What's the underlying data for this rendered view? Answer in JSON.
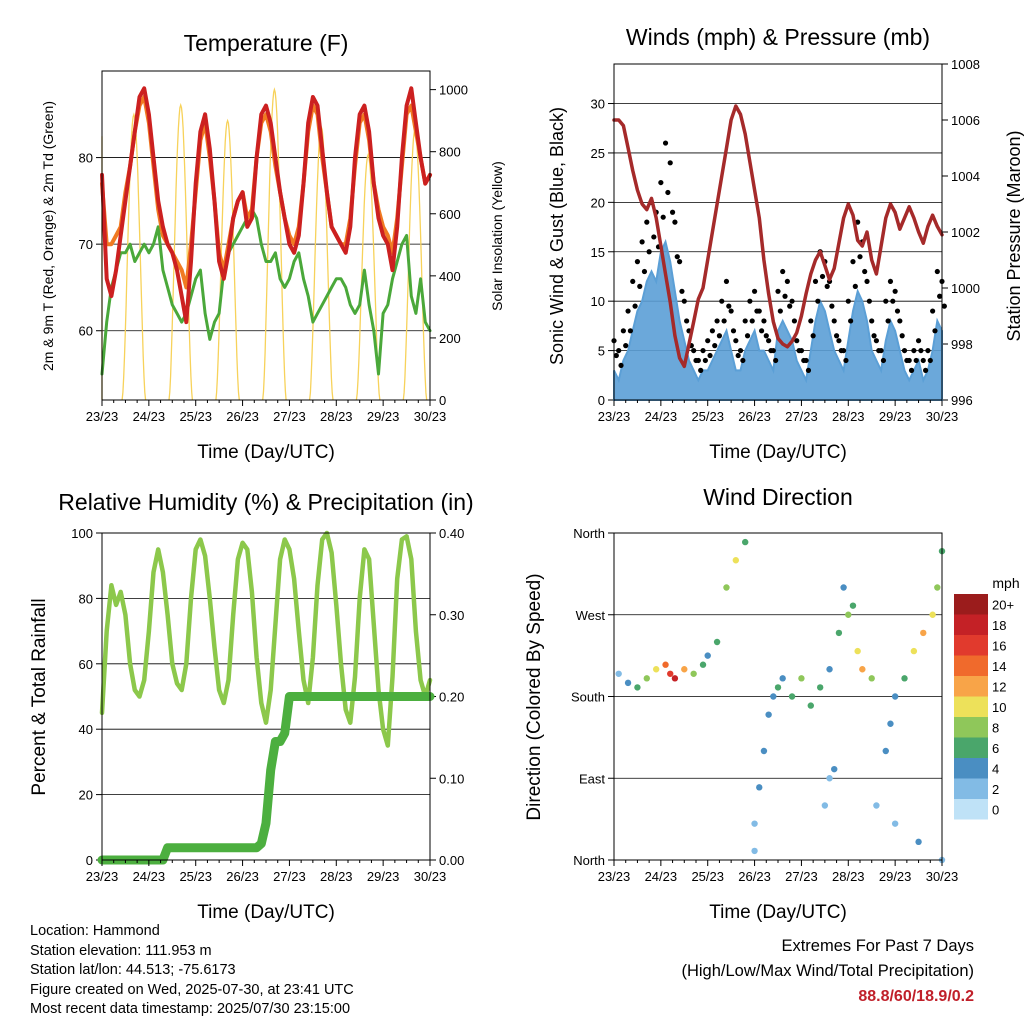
{
  "colors": {
    "temp2m": "#cc2020",
    "temp9m": "#f07a22",
    "dewpoint": "#4aa83a",
    "solar": "#f7d25a",
    "gust": "#000000",
    "wind": "#5b9fd6",
    "pressure": "#a52a2a",
    "rh": "#8cc84b",
    "rain": "#4caf3f",
    "highlight": "#c0202a"
  },
  "time_ticks": [
    "23/23",
    "24/23",
    "25/23",
    "26/23",
    "27/23",
    "28/23",
    "29/23",
    "30/23"
  ],
  "chart_data": [
    {
      "id": "temperature",
      "type": "line",
      "title": "Temperature (F)",
      "xlabel": "Time (Day/UTC)",
      "ylabel": "2m & 9m T (Red, Orange) & 2m Td (Green)",
      "y2label": "Solar Insolation (Yellow)",
      "ylim": [
        52,
        90
      ],
      "y2lim": [
        0,
        1060
      ],
      "yticks": [
        60,
        70,
        80
      ],
      "y2ticks": [
        0,
        200,
        400,
        600,
        800,
        1000
      ],
      "x": [
        0,
        0.1,
        0.2,
        0.3,
        0.4,
        0.5,
        0.6,
        0.7,
        0.8,
        0.9,
        1,
        1.1,
        1.2,
        1.3,
        1.4,
        1.5,
        1.6,
        1.7,
        1.8,
        1.9,
        2,
        2.1,
        2.2,
        2.3,
        2.4,
        2.5,
        2.6,
        2.7,
        2.8,
        2.9,
        3,
        3.1,
        3.2,
        3.3,
        3.4,
        3.5,
        3.6,
        3.7,
        3.8,
        3.9,
        4,
        4.1,
        4.2,
        4.3,
        4.4,
        4.5,
        4.6,
        4.7,
        4.8,
        4.9,
        5,
        5.1,
        5.2,
        5.3,
        5.4,
        5.5,
        5.6,
        5.7,
        5.8,
        5.9,
        6,
        6.1,
        6.2,
        6.3,
        6.4,
        6.5,
        6.6,
        6.7,
        6.8,
        6.9,
        7
      ],
      "series": [
        {
          "name": "2m T",
          "color": "temp2m",
          "values": [
            78,
            66,
            64,
            67,
            71,
            75,
            79,
            83,
            87,
            88,
            85,
            80,
            75,
            72,
            70,
            69,
            67,
            64,
            61,
            68,
            77,
            83,
            85,
            81,
            75,
            68,
            66,
            69,
            73,
            75,
            76,
            72,
            73,
            80,
            85,
            86,
            84,
            80,
            76,
            73,
            70,
            69,
            71,
            77,
            84,
            87,
            86,
            81,
            76,
            72,
            71,
            70,
            69,
            72,
            80,
            85,
            86,
            83,
            77,
            73,
            71,
            70,
            67,
            72,
            80,
            86,
            88,
            84,
            80,
            77,
            78
          ]
        },
        {
          "name": "9m T",
          "color": "temp9m",
          "values": [
            77,
            70,
            70,
            71,
            72,
            76,
            79,
            83,
            86,
            87,
            84,
            79,
            74,
            71,
            70,
            69,
            68,
            67,
            65,
            70,
            76,
            82,
            84,
            80,
            75,
            69,
            67,
            70,
            73,
            75,
            76,
            73,
            74,
            80,
            84,
            85,
            83,
            79,
            76,
            73,
            71,
            70,
            72,
            77,
            83,
            86,
            85,
            80,
            76,
            72,
            71,
            70,
            70,
            73,
            79,
            84,
            85,
            82,
            77,
            74,
            72,
            71,
            69,
            73,
            79,
            85,
            86,
            83,
            80,
            77,
            78
          ]
        },
        {
          "name": "2m Td",
          "color": "dewpoint",
          "values": [
            55,
            61,
            65,
            67,
            69,
            69,
            70,
            68,
            69,
            70,
            69,
            70,
            72,
            67,
            65,
            63,
            62,
            61,
            62,
            64,
            66,
            67,
            62,
            59,
            61,
            62,
            67,
            69,
            70,
            71,
            72,
            73,
            74,
            73,
            70,
            68,
            68,
            69,
            66,
            65,
            66,
            68,
            69,
            66,
            64,
            61,
            62,
            63,
            64,
            65,
            66,
            66,
            65,
            63,
            62,
            63,
            67,
            63,
            60,
            55,
            62,
            63,
            66,
            68,
            70,
            71,
            64,
            62,
            66,
            61,
            60
          ]
        },
        {
          "name": "Solar",
          "axis": "right",
          "color": "solar",
          "diurnal_peaks": [
            850,
            920,
            950,
            900,
            1000,
            880,
            790,
            870
          ]
        }
      ]
    },
    {
      "id": "winds",
      "type": "scatter",
      "title": "Winds (mph) & Pressure (mb)",
      "xlabel": "Time (Day/UTC)",
      "ylabel": "Sonic Wind & Gust (Blue, Black)",
      "y2label": "Station Pressure (Maroon)",
      "ylim": [
        0,
        34
      ],
      "y2lim": [
        996,
        1008
      ],
      "yticks": [
        0,
        5,
        10,
        15,
        20,
        25,
        30
      ],
      "y2ticks": [
        996,
        998,
        1000,
        1002,
        1004,
        1006,
        1008
      ],
      "x": [
        0,
        0.1,
        0.2,
        0.3,
        0.4,
        0.5,
        0.6,
        0.7,
        0.8,
        0.9,
        1,
        1.1,
        1.2,
        1.3,
        1.4,
        1.5,
        1.6,
        1.7,
        1.8,
        1.9,
        2,
        2.1,
        2.2,
        2.3,
        2.4,
        2.5,
        2.6,
        2.7,
        2.8,
        2.9,
        3,
        3.1,
        3.2,
        3.3,
        3.4,
        3.5,
        3.6,
        3.7,
        3.8,
        3.9,
        4,
        4.1,
        4.2,
        4.3,
        4.4,
        4.5,
        4.6,
        4.7,
        4.8,
        4.9,
        5,
        5.1,
        5.2,
        5.3,
        5.4,
        5.5,
        5.6,
        5.7,
        5.8,
        5.9,
        6,
        6.1,
        6.2,
        6.3,
        6.4,
        6.5,
        6.6,
        6.7,
        6.8,
        6.9,
        7
      ],
      "series": [
        {
          "name": "Gust",
          "color": "gust",
          "values": [
            6,
            5,
            7,
            9,
            12,
            14,
            16,
            18,
            20,
            19,
            22,
            26,
            24,
            18,
            14,
            10,
            7,
            5,
            4,
            5,
            6,
            7,
            8,
            10,
            12,
            9,
            6,
            5,
            8,
            10,
            11,
            9,
            8,
            6,
            5,
            11,
            13,
            12,
            10,
            6,
            5,
            4,
            8,
            12,
            15,
            14,
            12,
            8,
            6,
            5,
            10,
            14,
            18,
            16,
            12,
            8,
            6,
            5,
            10,
            12,
            11,
            8,
            5,
            4,
            5,
            6,
            4,
            5,
            9,
            13,
            12
          ]
        },
        {
          "name": "Wind",
          "color": "wind",
          "values": [
            3,
            2,
            4,
            5,
            7,
            9,
            10,
            12,
            13,
            12,
            15,
            16,
            14,
            11,
            8,
            6,
            4,
            3,
            2,
            3,
            3,
            4,
            5,
            6,
            7,
            5,
            3,
            3,
            5,
            6,
            7,
            5,
            5,
            4,
            3,
            7,
            8,
            7,
            6,
            4,
            3,
            2,
            5,
            8,
            10,
            9,
            7,
            5,
            4,
            3,
            6,
            9,
            11,
            10,
            8,
            5,
            4,
            3,
            6,
            8,
            7,
            5,
            3,
            2,
            3,
            4,
            2,
            3,
            5,
            8,
            7
          ]
        },
        {
          "name": "Pressure",
          "axis": "right",
          "color": "pressure",
          "values": [
            1006,
            1006,
            1005.8,
            1005,
            1004.2,
            1003.5,
            1003,
            1002.8,
            1003.2,
            1002.5,
            1001.5,
            1000.5,
            999.5,
            998.3,
            997.5,
            997.2,
            998,
            998.8,
            999.6,
            1000,
            1001,
            1002,
            1003,
            1004,
            1005,
            1006,
            1006.5,
            1006.2,
            1005.5,
            1004.5,
            1003.5,
            1002.5,
            1001,
            999.8,
            998.8,
            998.2,
            998,
            997.9,
            998.1,
            998.4,
            999,
            999.8,
            1000.5,
            1001,
            1001.3,
            1000.8,
            1000.3,
            1000.7,
            1001.6,
            1002.5,
            1003,
            1002.6,
            1001.7,
            1001.5,
            1002,
            1001,
            1000.5,
            1001.5,
            1002.5,
            1003,
            1002.7,
            1002.1,
            1002.5,
            1002.9,
            1002.5,
            1002,
            1001.6,
            1002.2,
            1002.6,
            1002.2,
            1001.9
          ]
        }
      ]
    },
    {
      "id": "humidity",
      "type": "line",
      "title": "Relative Humidity (%) & Precipitation (in)",
      "xlabel": "Time (Day/UTC)",
      "ylabel": "Percent & Total Rainfall",
      "ylim": [
        0,
        100
      ],
      "y2lim": [
        0,
        0.4
      ],
      "yticks": [
        0,
        20,
        40,
        60,
        80,
        100
      ],
      "y2ticks": [
        "0.00",
        "0.10",
        "0.20",
        "0.30",
        "0.40"
      ],
      "x": [
        0,
        0.1,
        0.2,
        0.3,
        0.4,
        0.5,
        0.6,
        0.7,
        0.8,
        0.9,
        1,
        1.1,
        1.2,
        1.3,
        1.4,
        1.5,
        1.6,
        1.7,
        1.8,
        1.9,
        2,
        2.1,
        2.2,
        2.3,
        2.4,
        2.5,
        2.6,
        2.7,
        2.8,
        2.9,
        3,
        3.1,
        3.2,
        3.3,
        3.4,
        3.5,
        3.6,
        3.7,
        3.8,
        3.9,
        4,
        4.1,
        4.2,
        4.3,
        4.4,
        4.5,
        4.6,
        4.7,
        4.8,
        4.9,
        5,
        5.1,
        5.2,
        5.3,
        5.4,
        5.5,
        5.6,
        5.7,
        5.8,
        5.9,
        6,
        6.1,
        6.2,
        6.3,
        6.4,
        6.5,
        6.6,
        6.7,
        6.8,
        6.9,
        7
      ],
      "series": [
        {
          "name": "RH",
          "color": "rh",
          "values": [
            45,
            70,
            84,
            78,
            82,
            75,
            60,
            52,
            50,
            55,
            70,
            88,
            95,
            88,
            75,
            60,
            54,
            52,
            60,
            80,
            95,
            98,
            93,
            80,
            65,
            52,
            48,
            55,
            75,
            92,
            97,
            95,
            82,
            62,
            48,
            42,
            52,
            72,
            92,
            98,
            95,
            86,
            70,
            55,
            48,
            62,
            84,
            98,
            100,
            94,
            78,
            60,
            46,
            42,
            56,
            80,
            95,
            92,
            72,
            52,
            40,
            35,
            56,
            86,
            98,
            99,
            92,
            70,
            55,
            50,
            55
          ]
        },
        {
          "name": "Total Rainfall",
          "axis": "right",
          "color": "rain",
          "values": [
            0,
            0,
            0,
            0,
            0,
            0,
            0,
            0,
            0,
            0,
            0,
            0,
            0,
            0,
            0.015,
            0.015,
            0.015,
            0.015,
            0.015,
            0.015,
            0.015,
            0.015,
            0.015,
            0.015,
            0.015,
            0.015,
            0.015,
            0.015,
            0.015,
            0.015,
            0.015,
            0.015,
            0.015,
            0.015,
            0.02,
            0.045,
            0.11,
            0.145,
            0.145,
            0.155,
            0.2,
            0.2,
            0.2,
            0.2,
            0.2,
            0.2,
            0.2,
            0.2,
            0.2,
            0.2,
            0.2,
            0.2,
            0.2,
            0.2,
            0.2,
            0.2,
            0.2,
            0.2,
            0.2,
            0.2,
            0.2,
            0.2,
            0.2,
            0.2,
            0.2,
            0.2,
            0.2,
            0.2,
            0.2,
            0.2,
            0.2
          ]
        }
      ]
    },
    {
      "id": "direction",
      "type": "scatter",
      "title": "Wind Direction",
      "xlabel": "Time (Day/UTC)",
      "ylabel": "Direction (Colored By Speed)",
      "ylim": [
        0,
        360
      ],
      "yticks": [
        "North",
        "East",
        "South",
        "West",
        "North"
      ],
      "legend": {
        "title": "mph",
        "labels": [
          "20+",
          "18",
          "16",
          "14",
          "12",
          "10",
          "8",
          "6",
          "4",
          "2",
          "0"
        ],
        "colors": [
          "#9b1c1c",
          "#c42126",
          "#e13a2d",
          "#f06a2c",
          "#f8a448",
          "#ede15a",
          "#8fc75a",
          "#4aa66b",
          "#4a8ec2",
          "#82bbe5",
          "#bfe2f7"
        ]
      },
      "points": [
        [
          0.1,
          205,
          2
        ],
        [
          0.3,
          195,
          4
        ],
        [
          0.5,
          190,
          6
        ],
        [
          0.7,
          200,
          8
        ],
        [
          0.9,
          210,
          10
        ],
        [
          1.1,
          215,
          14
        ],
        [
          1.2,
          205,
          16
        ],
        [
          1.3,
          200,
          18
        ],
        [
          1.5,
          210,
          12
        ],
        [
          1.7,
          205,
          8
        ],
        [
          1.9,
          215,
          6
        ],
        [
          2.0,
          225,
          4
        ],
        [
          2.2,
          240,
          6
        ],
        [
          2.4,
          300,
          8
        ],
        [
          2.6,
          330,
          10
        ],
        [
          2.8,
          350,
          6
        ],
        [
          3.0,
          10,
          2
        ],
        [
          3.0,
          40,
          2
        ],
        [
          3.1,
          80,
          3
        ],
        [
          3.2,
          120,
          4
        ],
        [
          3.3,
          160,
          4
        ],
        [
          3.4,
          180,
          4
        ],
        [
          3.5,
          190,
          6
        ],
        [
          3.6,
          200,
          4
        ],
        [
          3.8,
          180,
          6
        ],
        [
          4.0,
          200,
          8
        ],
        [
          4.2,
          170,
          6
        ],
        [
          4.4,
          190,
          6
        ],
        [
          4.6,
          210,
          4
        ],
        [
          4.8,
          250,
          6
        ],
        [
          5.0,
          270,
          8
        ],
        [
          5.2,
          230,
          10
        ],
        [
          5.3,
          210,
          12
        ],
        [
          5.5,
          200,
          8
        ],
        [
          5.6,
          60,
          2
        ],
        [
          5.8,
          120,
          3
        ],
        [
          6.0,
          180,
          4
        ],
        [
          6.2,
          200,
          6
        ],
        [
          6.4,
          230,
          10
        ],
        [
          6.6,
          250,
          12
        ],
        [
          6.8,
          270,
          10
        ],
        [
          6.9,
          300,
          8
        ],
        [
          7.0,
          340,
          6
        ],
        [
          7.0,
          0,
          2
        ],
        [
          6.5,
          20,
          3
        ],
        [
          6.0,
          40,
          2
        ],
        [
          5.9,
          150,
          4
        ],
        [
          4.5,
          60,
          2
        ],
        [
          4.6,
          90,
          2
        ],
        [
          4.7,
          100,
          3
        ],
        [
          5.1,
          280,
          6
        ],
        [
          4.9,
          300,
          4
        ]
      ]
    }
  ],
  "info": {
    "location": "Location: Hammond",
    "elevation": "Station elevation: 111.953 m",
    "latlon": "Station lat/lon: 44.513; -75.6173",
    "created": "Figure created on Wed, 2025-07-30, at 23:41 UTC",
    "recent": "Most recent data timestamp: 2025/07/30 23:15:00"
  },
  "extremes": {
    "title": "Extremes For Past 7 Days",
    "subtitle": "(High/Low/Max Wind/Total Precipitation)",
    "values": "88.8/60/18.9/0.2"
  }
}
